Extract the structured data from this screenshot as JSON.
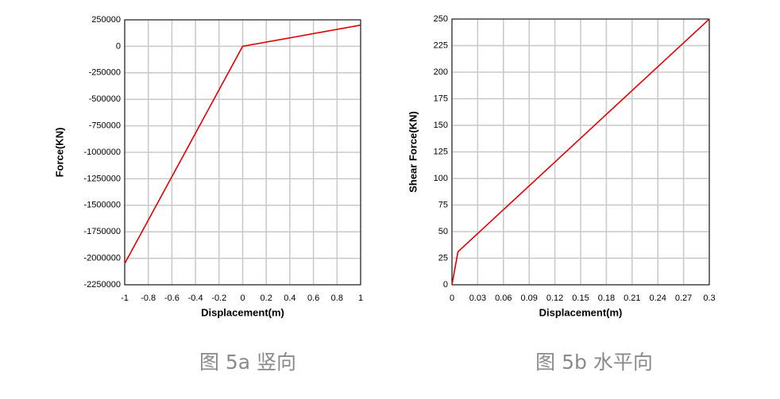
{
  "chart_data": [
    {
      "type": "line",
      "xlabel": "Displacement(m)",
      "ylabel": "Force(KN)",
      "x": [
        -1,
        0,
        1
      ],
      "values": [
        -2050000,
        0,
        200000
      ],
      "color": "#e00000",
      "xlim": [
        -1,
        1
      ],
      "xticks": [
        -1,
        -0.8,
        -0.6,
        -0.4,
        -0.2,
        0,
        0.2,
        0.4,
        0.6,
        0.8,
        1
      ],
      "ylim": [
        -2250000,
        250000
      ],
      "yticks": [
        250000,
        0,
        -250000,
        -500000,
        -750000,
        -1000000,
        -1250000,
        -1500000,
        -1750000,
        -2000000,
        -2250000
      ],
      "grid": true,
      "caption": "图 5a 竖向"
    },
    {
      "type": "line",
      "xlabel": "Displacement(m)",
      "ylabel": "Shear Force(KN)",
      "x": [
        0,
        0.007,
        0.3
      ],
      "values": [
        0,
        31,
        250
      ],
      "color": "#e00000",
      "xlim": [
        0,
        0.3
      ],
      "xticks": [
        0,
        0.03,
        0.06,
        0.09,
        0.12,
        0.15,
        0.18,
        0.21,
        0.24,
        0.27,
        0.3
      ],
      "ylim": [
        0,
        250
      ],
      "yticks": [
        0,
        25,
        50,
        75,
        100,
        125,
        150,
        175,
        200,
        225,
        250
      ],
      "grid": true,
      "caption": "图 5b 水平向"
    }
  ]
}
